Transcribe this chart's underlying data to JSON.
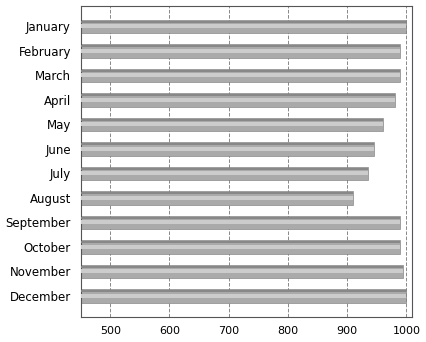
{
  "categories": [
    "January",
    "February",
    "March",
    "April",
    "May",
    "June",
    "July",
    "August",
    "September",
    "October",
    "November",
    "December"
  ],
  "values": [
    1000,
    990,
    990,
    980,
    960,
    945,
    935,
    910,
    990,
    990,
    995,
    1000
  ],
  "bar_color_main": "#aaaaaa",
  "bar_color_top": "#cccccc",
  "bar_color_bottom": "#888888",
  "bar_edge_color": "#777777",
  "background_color": "#ffffff",
  "xlim_left": 450,
  "xlim_right": 1010,
  "xticks": [
    500,
    600,
    700,
    800,
    900,
    1000
  ],
  "grid_color": "#888888",
  "grid_linestyle": "--",
  "bar_height": 0.55,
  "tick_fontsize": 8,
  "label_fontsize": 8.5,
  "spine_color": "#555555"
}
